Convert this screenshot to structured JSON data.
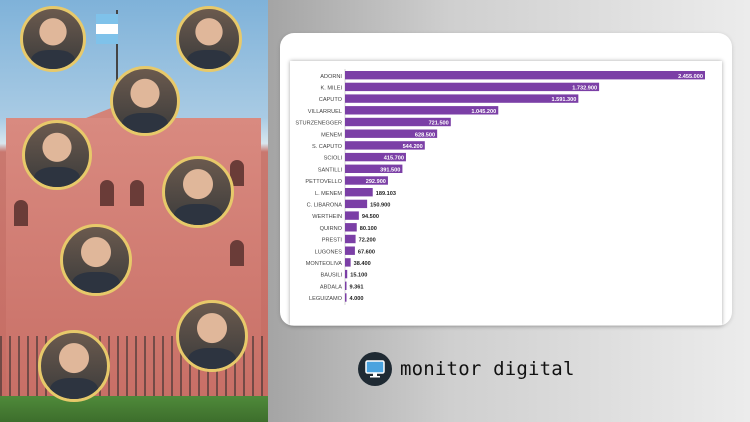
{
  "brand": {
    "name": "monitor digital",
    "icon": "monitor-icon"
  },
  "colors": {
    "bar": "#7b3fa6",
    "accent_border": "#e7c96a"
  },
  "chart_data": {
    "type": "bar",
    "orientation": "horizontal",
    "grid": false,
    "categories": [
      "ADORNI",
      "K. MILEI",
      "CAPUTO",
      "VILLARRUEL",
      "STURZENEGGER",
      "MENEM",
      "S. CAPUTO",
      "SCIOLI",
      "SANTILLI",
      "PETTOVELLO",
      "L. MENEM",
      "C. LIBARONA",
      "WERTHEIN",
      "QUIRNO",
      "PRESTI",
      "LUGONES",
      "MONTEOLIVA",
      "BAUSILI",
      "ABDALA",
      "LEGUIZAMO"
    ],
    "values": [
      2455000,
      1732900,
      1591300,
      1045200,
      721500,
      628500,
      544200,
      415700,
      391500,
      292900,
      189103,
      150900,
      94500,
      80100,
      72200,
      67600,
      38400,
      15100,
      9361,
      4000
    ],
    "value_labels": [
      "2.455.000",
      "1.732.900",
      "1.591.300",
      "1.045.200",
      "721.500",
      "628.500",
      "544.200",
      "415.700",
      "391.500",
      "292.900",
      "189.103",
      "150.900",
      "94.500",
      "80.100",
      "72.200",
      "67.600",
      "38.400",
      "15.100",
      "9.361",
      "4.000"
    ],
    "xlim": [
      0,
      2455000
    ]
  }
}
